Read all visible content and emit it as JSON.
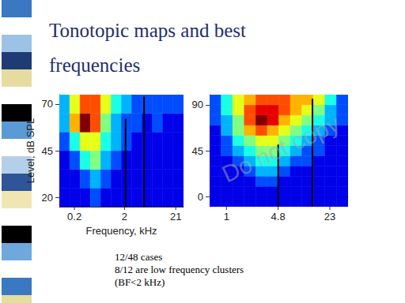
{
  "title": "Tonotopic maps and best frequencies",
  "watermark": "Do not copy",
  "notes": [
    "12/48 cases",
    "8/12 are low frequency clusters",
    "(BF<2 kHz)"
  ],
  "chart_data": [
    {
      "type": "heatmap",
      "xlabel": "Frequency, kHz",
      "ylabel": "Level, dB SPL",
      "log": "x",
      "grid": false,
      "xlim": [
        0.1,
        30
      ],
      "xticks": [
        0.2,
        2,
        21
      ],
      "ylim": [
        15,
        75
      ],
      "yticks": [
        20,
        45,
        70
      ],
      "x_edges": [
        0.1,
        0.161,
        0.259,
        0.416,
        0.669,
        1.076,
        1.73,
        2.78,
        4.47,
        7.19,
        11.57,
        18.6,
        30
      ],
      "y_edges": [
        15,
        25,
        35,
        45,
        55,
        65,
        75
      ],
      "cells": [
        [
          1,
          1,
          1,
          2,
          1,
          1,
          1,
          1,
          1,
          1,
          1,
          1
        ],
        [
          1,
          1,
          2,
          3,
          2,
          1,
          1,
          1,
          1,
          1,
          1,
          1
        ],
        [
          1,
          2,
          4,
          5,
          3,
          2,
          1,
          1,
          1,
          1,
          1,
          1
        ],
        [
          2,
          4,
          6,
          6,
          4,
          3,
          2,
          1,
          1,
          1,
          1,
          1
        ],
        [
          3,
          7,
          10,
          8,
          5,
          3,
          2,
          2,
          1,
          2,
          1,
          1
        ],
        [
          3,
          6,
          8,
          8,
          6,
          4,
          3,
          2,
          2,
          2,
          2,
          2
        ]
      ],
      "color_range": [
        0,
        10
      ],
      "lines": [
        {
          "x": 2.1,
          "y": [
            15,
            62
          ]
        },
        {
          "x": 4.9,
          "y": [
            15,
            74
          ]
        }
      ]
    },
    {
      "type": "heatmap",
      "log": "x",
      "grid": false,
      "xlim": [
        0.6,
        40
      ],
      "xticks": [
        1,
        4.8,
        23
      ],
      "ylim": [
        -10,
        100
      ],
      "yticks": [
        0,
        45,
        90
      ],
      "x_edges": [
        0.6,
        0.851,
        1.208,
        1.714,
        2.432,
        3.451,
        4.897,
        6.949,
        9.86,
        13.99,
        19.86,
        28.18,
        40
      ],
      "y_edges": [
        -10,
        0,
        10,
        20,
        30,
        40,
        50,
        60,
        70,
        80,
        90,
        100
      ],
      "cells": [
        [
          1,
          1,
          1,
          1,
          1,
          1,
          1,
          1,
          1,
          1,
          1,
          1
        ],
        [
          1,
          1,
          1,
          1,
          1,
          1,
          1,
          1,
          1,
          1,
          1,
          1
        ],
        [
          1,
          1,
          1,
          1,
          2,
          2,
          1,
          1,
          1,
          1,
          1,
          1
        ],
        [
          1,
          1,
          1,
          2,
          3,
          3,
          2,
          1,
          1,
          1,
          1,
          1
        ],
        [
          1,
          1,
          2,
          3,
          4,
          4,
          3,
          2,
          2,
          1,
          1,
          1
        ],
        [
          1,
          2,
          3,
          4,
          5,
          5,
          4,
          3,
          2,
          2,
          1,
          1
        ],
        [
          1,
          2,
          4,
          5,
          6,
          6,
          5,
          4,
          3,
          2,
          1,
          1
        ],
        [
          1,
          3,
          5,
          7,
          8,
          7,
          6,
          5,
          4,
          3,
          2,
          1
        ],
        [
          2,
          3,
          5,
          8,
          10,
          9,
          7,
          6,
          5,
          4,
          3,
          2
        ],
        [
          2,
          4,
          6,
          8,
          9,
          9,
          8,
          7,
          6,
          5,
          3,
          2
        ],
        [
          2,
          4,
          6,
          7,
          8,
          8,
          8,
          7,
          7,
          6,
          4,
          2
        ]
      ],
      "color_range": [
        0,
        10
      ],
      "lines": [
        {
          "x": 4.8,
          "y": [
            -10,
            51
          ]
        },
        {
          "x": 13.6,
          "y": [
            -10,
            96
          ]
        }
      ]
    }
  ]
}
